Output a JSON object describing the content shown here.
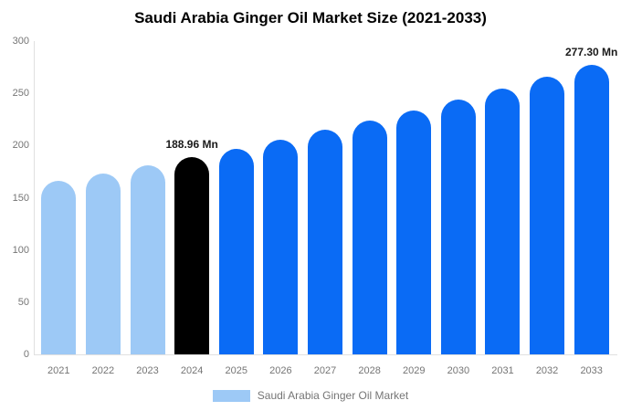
{
  "chart_data": {
    "type": "bar",
    "title": "Saudi Arabia Ginger Oil Market Size (2021-2033)",
    "categories": [
      "2021",
      "2022",
      "2023",
      "2024",
      "2025",
      "2026",
      "2027",
      "2028",
      "2029",
      "2030",
      "2031",
      "2032",
      "2033"
    ],
    "values": [
      166.28,
      173.52,
      181.08,
      188.96,
      197.19,
      205.77,
      214.73,
      224.08,
      233.84,
      244.02,
      254.64,
      265.73,
      277.3
    ],
    "unit": "Mn",
    "xlabel": "",
    "ylabel": "",
    "ylim": [
      0,
      300
    ],
    "yticks": [
      0,
      50,
      100,
      150,
      200,
      250,
      300
    ],
    "grid": "off",
    "legend_position": "bottom",
    "bar_styles": {
      "past_color": "#9dc9f6",
      "highlight_color": "#000000",
      "forecast_color": "#0a6bf5",
      "past_years": [
        "2021",
        "2022",
        "2023"
      ],
      "highlight_year": "2024"
    },
    "data_labels": [
      {
        "category": "2024",
        "text": "188.96 Mn"
      },
      {
        "category": "2033",
        "text": "277.30 Mn"
      }
    ]
  },
  "legend": {
    "label": "Saudi Arabia Ginger Oil Market"
  },
  "colors": {
    "title_text": "#000000",
    "axis_text": "#757575",
    "axis_line": "#e0e0e0",
    "legend_text": "#757575",
    "data_label_text": "#1a1a1a",
    "background": "#ffffff"
  }
}
